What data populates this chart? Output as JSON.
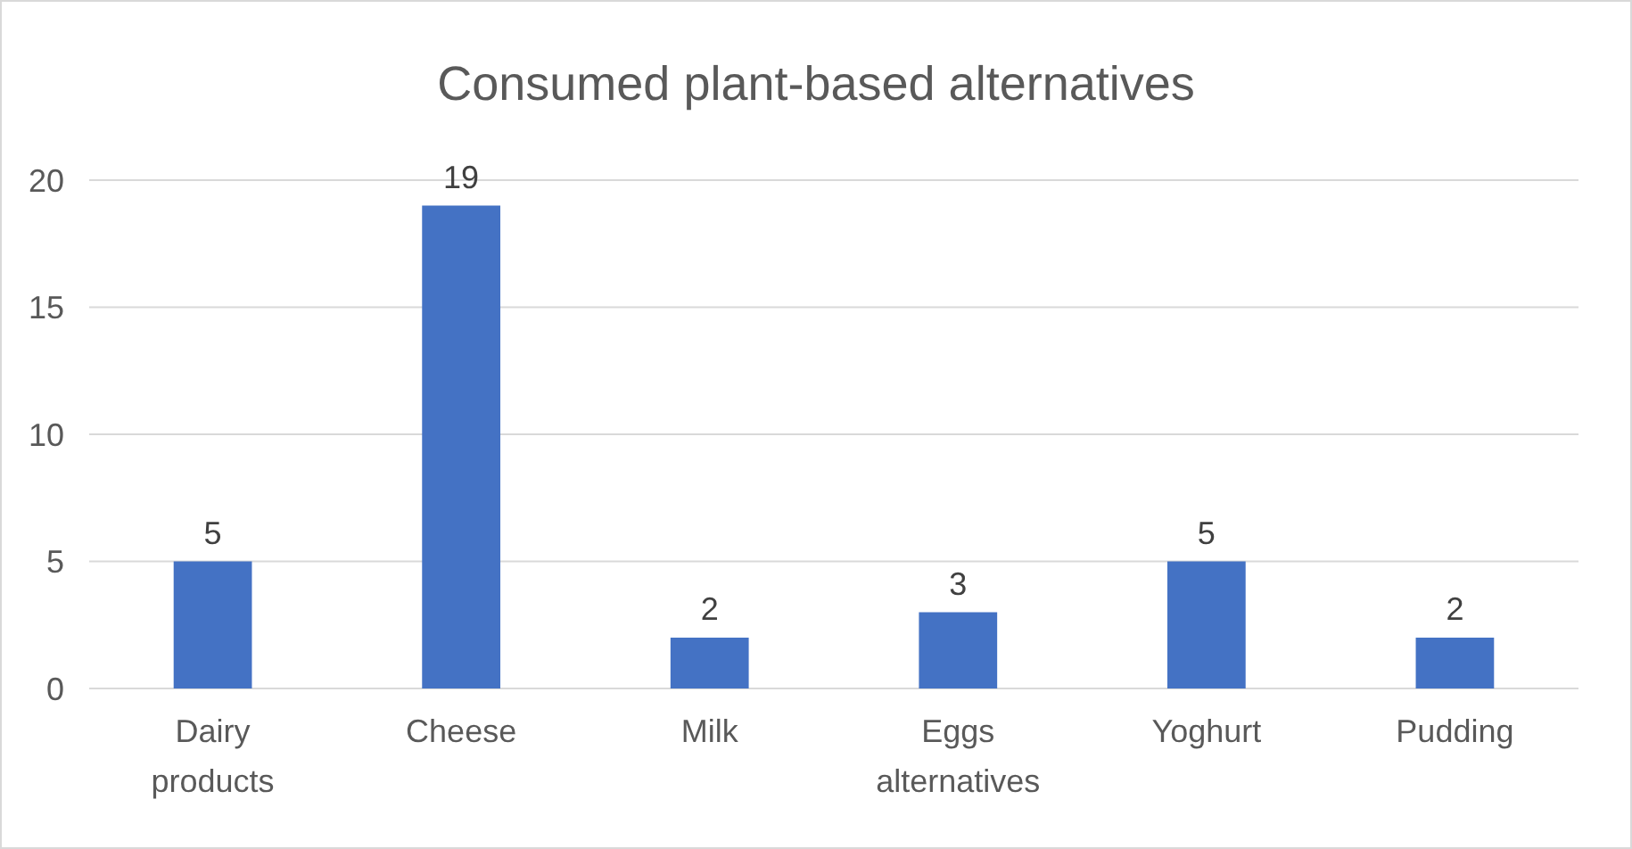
{
  "chart_data": {
    "type": "bar",
    "title": "Consumed plant-based alternatives",
    "categories": [
      "Dairy products",
      "Cheese",
      "Milk",
      "Eggs alternatives",
      "Yoghurt",
      "Pudding"
    ],
    "values": [
      5,
      19,
      2,
      3,
      5,
      2
    ],
    "color": "#4472c4",
    "ylim": [
      0,
      20
    ],
    "yticks": [
      0,
      5,
      10,
      15,
      20
    ],
    "grid": "y",
    "data_labels": true
  }
}
